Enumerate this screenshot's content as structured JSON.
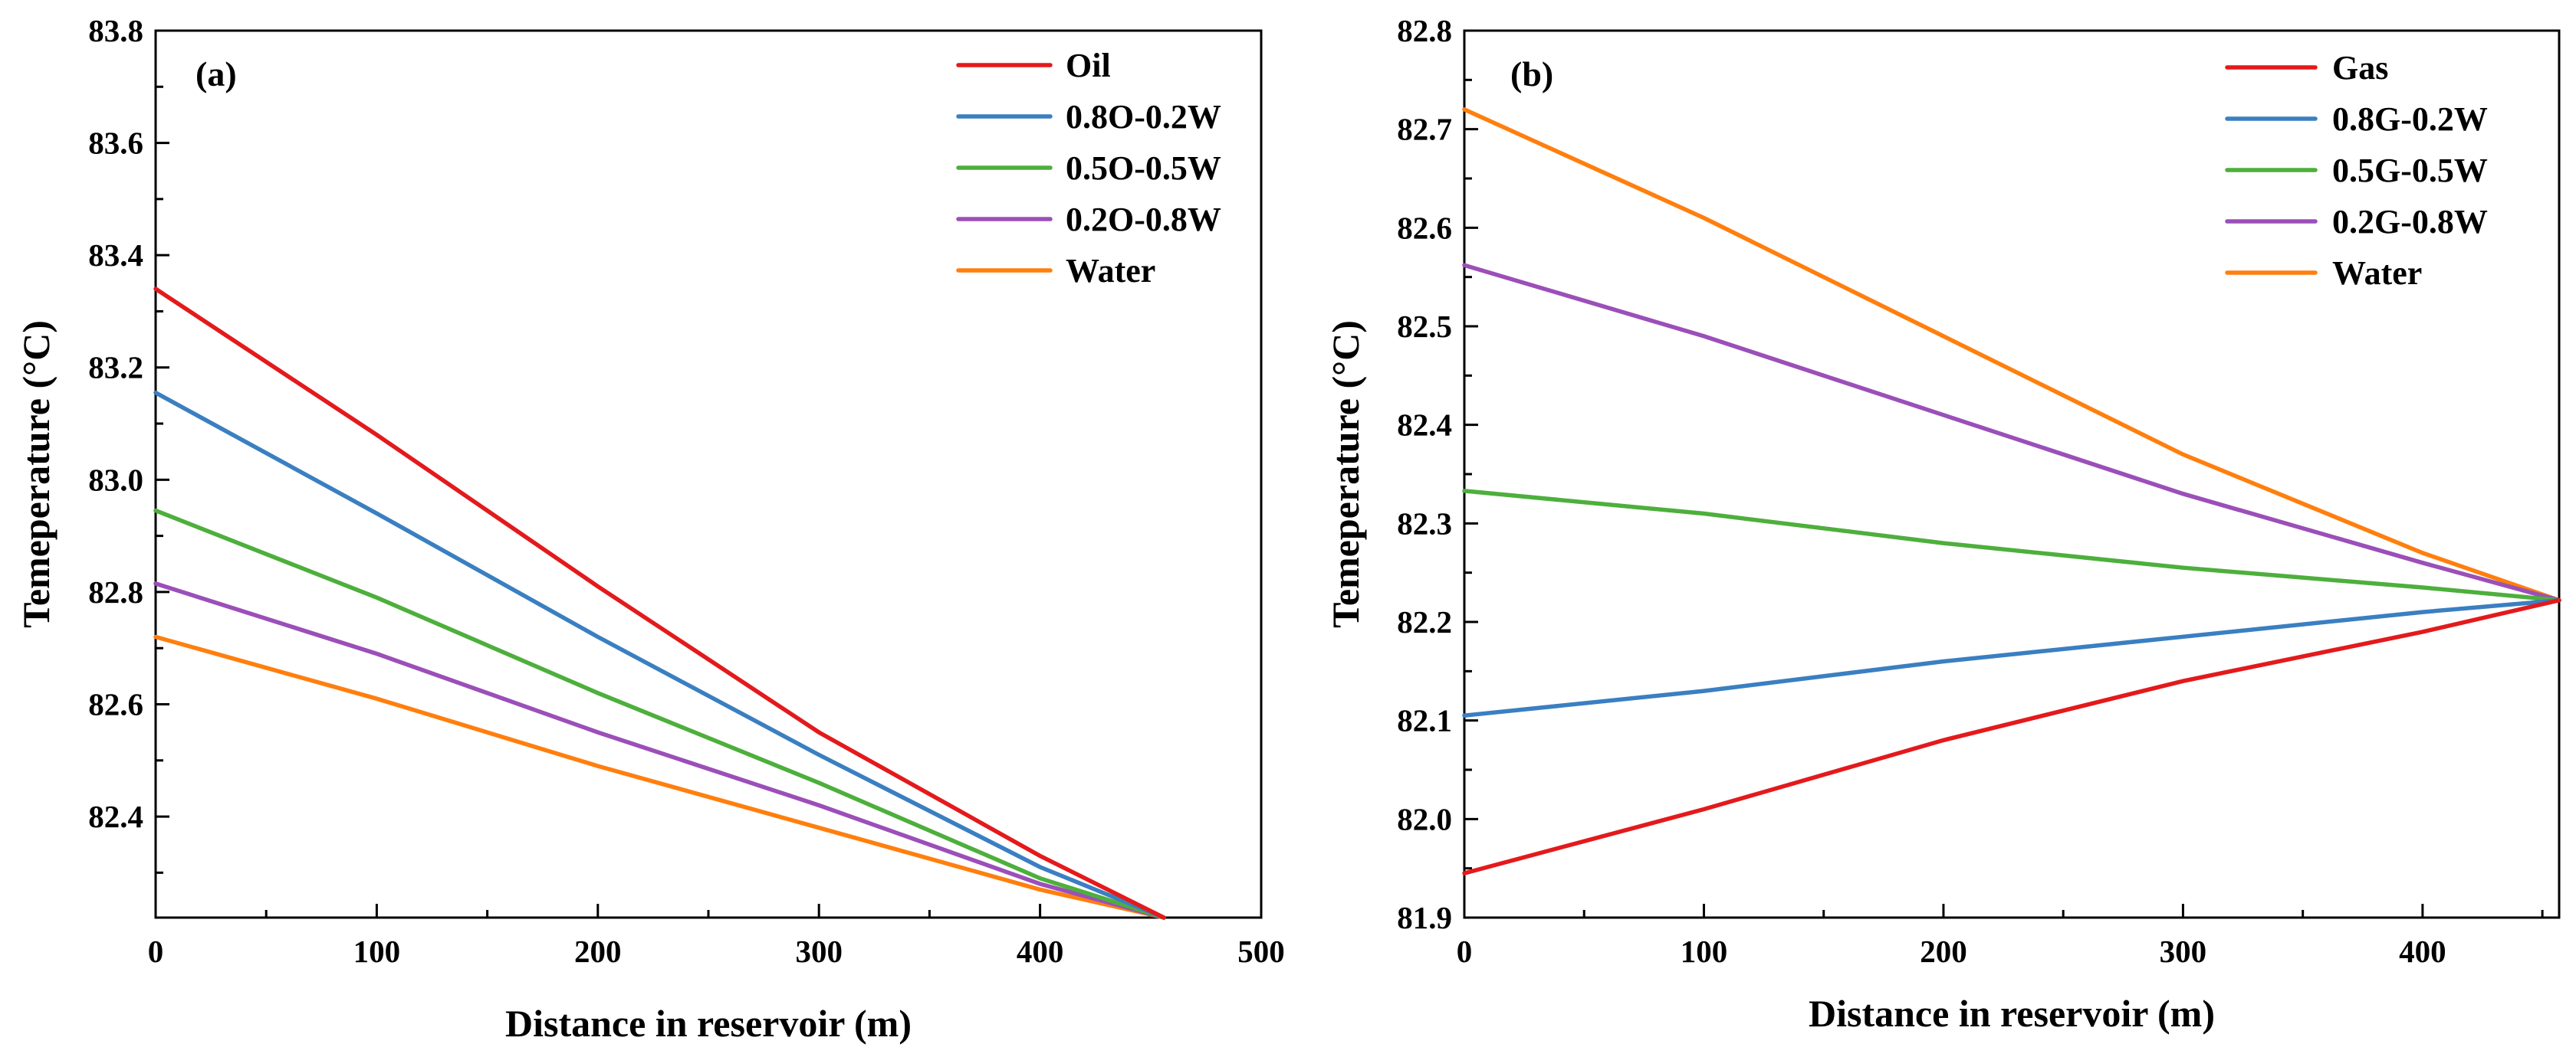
{
  "colors": {
    "red": "#e31a1c",
    "blue": "#3a7fc1",
    "green": "#4daf3c",
    "purple": "#9b4fb8",
    "orange": "#ff7f0e"
  },
  "chart_data": [
    {
      "type": "line",
      "panel_label": "(a)",
      "xlabel": "Distance in reservoir (m)",
      "ylabel": "Temeperature (°C)",
      "xlim": [
        0,
        500
      ],
      "ylim": [
        82.22,
        83.8
      ],
      "x_ticks": [
        0,
        100,
        200,
        300,
        400,
        500
      ],
      "x_tick_labels": [
        "0",
        "100",
        "200",
        "300",
        "400",
        "500"
      ],
      "x_minor_ticks": [
        50,
        150,
        250,
        350,
        450
      ],
      "y_ticks": [
        82.4,
        82.6,
        82.8,
        83.0,
        83.2,
        83.4,
        83.6,
        83.8
      ],
      "y_tick_labels": [
        "82.4",
        "82.6",
        "82.8",
        "83.0",
        "83.2",
        "83.4",
        "83.6",
        "83.8"
      ],
      "y_minor_ticks": [
        82.3,
        82.5,
        82.7,
        82.9,
        83.1,
        83.3,
        83.5,
        83.7
      ],
      "legend_position": "top-right",
      "series": [
        {
          "name": "Oil",
          "color": "red",
          "x": [
            0,
            100,
            200,
            300,
            400,
            456
          ],
          "y": [
            83.34,
            83.08,
            82.81,
            82.55,
            82.33,
            82.22
          ]
        },
        {
          "name": "0.8O-0.2W",
          "color": "blue",
          "x": [
            0,
            100,
            200,
            300,
            400,
            456
          ],
          "y": [
            83.155,
            82.94,
            82.72,
            82.51,
            82.31,
            82.22
          ]
        },
        {
          "name": "0.5O-0.5W",
          "color": "green",
          "x": [
            0,
            100,
            200,
            300,
            400,
            456
          ],
          "y": [
            82.945,
            82.79,
            82.62,
            82.46,
            82.29,
            82.22
          ]
        },
        {
          "name": "0.2O-0.8W",
          "color": "purple",
          "x": [
            0,
            100,
            200,
            300,
            400,
            456
          ],
          "y": [
            82.815,
            82.69,
            82.55,
            82.42,
            82.28,
            82.22
          ]
        },
        {
          "name": "Water",
          "color": "orange",
          "x": [
            0,
            100,
            200,
            300,
            400,
            456
          ],
          "y": [
            82.72,
            82.61,
            82.49,
            82.38,
            82.27,
            82.22
          ]
        }
      ]
    },
    {
      "type": "line",
      "panel_label": "(b)",
      "xlabel": "Distance in reservoir (m)",
      "ylabel": "Temeperature (°C)",
      "xlim": [
        0,
        457
      ],
      "ylim": [
        81.9,
        82.8
      ],
      "x_ticks": [
        0,
        100,
        200,
        300,
        400
      ],
      "x_tick_labels": [
        "0",
        "100",
        "200",
        "300",
        "400"
      ],
      "x_minor_ticks": [
        50,
        150,
        250,
        350,
        450
      ],
      "y_ticks": [
        81.9,
        82.0,
        82.1,
        82.2,
        82.3,
        82.4,
        82.5,
        82.6,
        82.7,
        82.8
      ],
      "y_tick_labels": [
        "81.9",
        "82.0",
        "82.1",
        "82.2",
        "82.3",
        "82.4",
        "82.5",
        "82.6",
        "82.7",
        "82.8"
      ],
      "y_minor_ticks": [
        81.95,
        82.05,
        82.15,
        82.25,
        82.35,
        82.45,
        82.55,
        82.65,
        82.75
      ],
      "legend_position": "top-right",
      "series": [
        {
          "name": "Gas",
          "color": "red",
          "x": [
            0,
            100,
            200,
            300,
            400,
            457
          ],
          "y": [
            81.945,
            82.01,
            82.08,
            82.14,
            82.19,
            82.222
          ]
        },
        {
          "name": "0.8G-0.2W",
          "color": "blue",
          "x": [
            0,
            100,
            200,
            300,
            400,
            457
          ],
          "y": [
            82.105,
            82.13,
            82.16,
            82.185,
            82.21,
            82.222
          ]
        },
        {
          "name": "0.5G-0.5W",
          "color": "green",
          "x": [
            0,
            100,
            200,
            300,
            400,
            457
          ],
          "y": [
            82.333,
            82.31,
            82.28,
            82.255,
            82.235,
            82.222
          ]
        },
        {
          "name": "0.2G-0.8W",
          "color": "purple",
          "x": [
            0,
            100,
            200,
            300,
            400,
            457
          ],
          "y": [
            82.562,
            82.49,
            82.41,
            82.33,
            82.26,
            82.222
          ]
        },
        {
          "name": "Water",
          "color": "orange",
          "x": [
            0,
            100,
            200,
            300,
            400,
            457
          ],
          "y": [
            82.72,
            82.61,
            82.49,
            82.37,
            82.27,
            82.222
          ]
        }
      ]
    }
  ]
}
